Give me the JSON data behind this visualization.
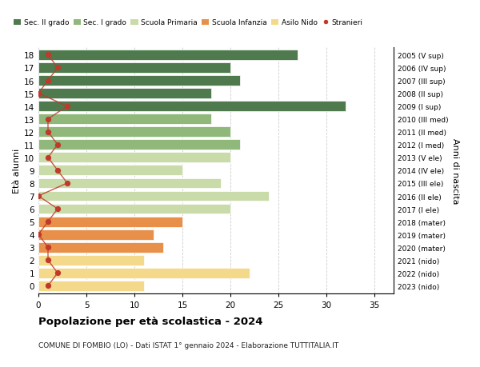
{
  "ages": [
    0,
    1,
    2,
    3,
    4,
    5,
    6,
    7,
    8,
    9,
    10,
    11,
    12,
    13,
    14,
    15,
    16,
    17,
    18
  ],
  "values": [
    11,
    22,
    11,
    13,
    12,
    15,
    20,
    24,
    19,
    15,
    20,
    21,
    20,
    18,
    32,
    18,
    21,
    20,
    27
  ],
  "bar_colors": [
    "#f5d98b",
    "#f5d98b",
    "#f5d98b",
    "#e8904a",
    "#e8904a",
    "#e8904a",
    "#c8dba8",
    "#c8dba8",
    "#c8dba8",
    "#c8dba8",
    "#c8dba8",
    "#8fb87a",
    "#8fb87a",
    "#8fb87a",
    "#4e7a4e",
    "#4e7a4e",
    "#4e7a4e",
    "#4e7a4e",
    "#4e7a4e"
  ],
  "right_labels": [
    "2023 (nido)",
    "2022 (nido)",
    "2021 (nido)",
    "2020 (mater)",
    "2019 (mater)",
    "2018 (mater)",
    "2017 (I ele)",
    "2016 (II ele)",
    "2015 (III ele)",
    "2014 (IV ele)",
    "2013 (V ele)",
    "2012 (I med)",
    "2011 (II med)",
    "2010 (III med)",
    "2009 (I sup)",
    "2008 (II sup)",
    "2007 (III sup)",
    "2006 (IV sup)",
    "2005 (V sup)"
  ],
  "legend_labels": [
    "Sec. II grado",
    "Sec. I grado",
    "Scuola Primaria",
    "Scuola Infanzia",
    "Asilo Nido",
    "Stranieri"
  ],
  "legend_colors": [
    "#4e7a4e",
    "#8fb87a",
    "#c8dba8",
    "#e8904a",
    "#f5d98b",
    "#c0392b"
  ],
  "ylabel_left": "Età alunni",
  "ylabel_right": "Anni di nascita",
  "title": "Popolazione per età scolastica - 2024",
  "subtitle": "COMUNE DI FOMBIO (LO) - Dati ISTAT 1° gennaio 2024 - Elaborazione TUTTITALIA.IT",
  "xlim": [
    0,
    37
  ],
  "xticks": [
    0,
    5,
    10,
    15,
    20,
    25,
    30,
    35
  ],
  "stranieri_color": "#c0392b",
  "stranieri_x": [
    1,
    2,
    1,
    1,
    0,
    1,
    2,
    0,
    3,
    2,
    1,
    2,
    1,
    1,
    3,
    0,
    1,
    2,
    1
  ],
  "bg_color": "#ffffff",
  "bar_height": 0.8
}
